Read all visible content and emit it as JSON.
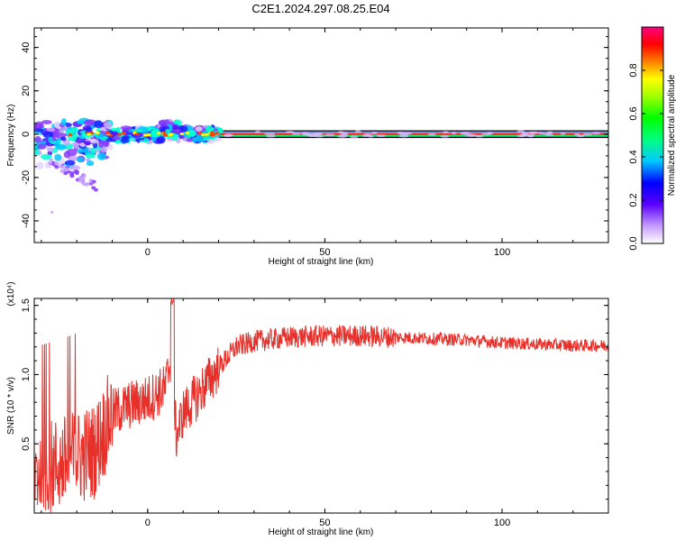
{
  "title": "C2E1.2024.297.08.25.E04",
  "chart_data": [
    {
      "type": "heatmap",
      "xlabel": "Height of straight line (km)",
      "ylabel": "Frequency (Hz)",
      "xlim": [
        -32,
        130
      ],
      "ylim": [
        -50,
        49
      ],
      "xticks": [
        0,
        50,
        100
      ],
      "yticks": [
        -40,
        -20,
        0,
        20,
        40
      ],
      "colorbar": {
        "label": "Normalized spectral amplitude",
        "ticks": [
          "0.0",
          "0.2",
          "0.4",
          "0.6",
          "0.8"
        ],
        "range": [
          0,
          1
        ]
      },
      "description_series": [
        {
          "x_range": [
            -32,
            20
          ],
          "freq_center": 0,
          "note": "noisy broadband blobs (blue/cyan/purple)"
        },
        {
          "x_range": [
            20,
            130
          ],
          "freq_center": 0,
          "note": "steady narrow carrier band, high amplitude"
        }
      ]
    },
    {
      "type": "line",
      "xlabel": "Height of straight line (km)",
      "ylabel": "SNR (10 * v/v)",
      "y_scale_label": "(x10⁴)",
      "xlim": [
        -32,
        130
      ],
      "ylim": [
        0,
        1.55
      ],
      "xticks": [
        0,
        50,
        100
      ],
      "yticks": [
        "0.5",
        "1.0",
        "1.5"
      ],
      "series": [
        {
          "color": "#e8302a",
          "x": [
            -32,
            -25,
            -20,
            -15,
            -10,
            -5,
            0,
            5,
            7,
            8,
            10,
            15,
            20,
            25,
            30,
            40,
            50,
            60,
            70,
            80,
            90,
            100,
            110,
            120,
            130
          ],
          "y": [
            0.3,
            0.35,
            0.4,
            0.45,
            0.72,
            0.78,
            0.82,
            0.9,
            1.2,
            0.55,
            0.72,
            0.88,
            1.05,
            1.2,
            1.24,
            1.27,
            1.28,
            1.28,
            1.27,
            1.26,
            1.25,
            1.23,
            1.22,
            1.21,
            1.21
          ]
        }
      ]
    }
  ]
}
